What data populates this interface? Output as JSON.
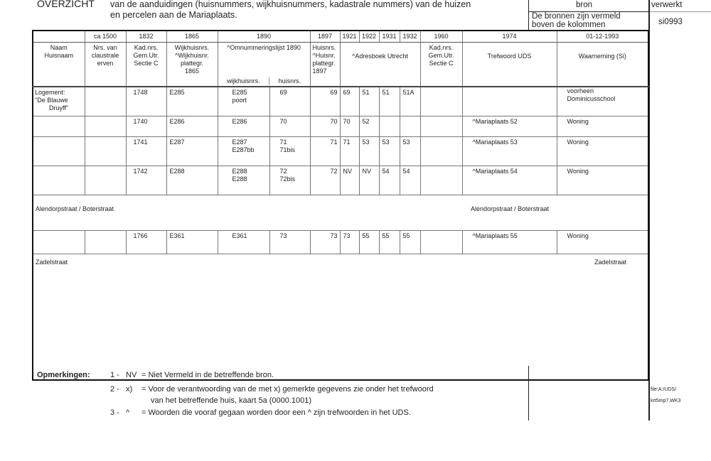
{
  "header": {
    "title": "OVERZICHT",
    "subtitle_line1": "van de aanduidingen (huisnummers, wijkhuisnummers, kadastrale nummers) van de huizen",
    "subtitle_line2": "en percelen aan de Mariaplaats.",
    "bron_label": "bron",
    "bron_text_1": "De bronnen zijn vermeld",
    "bron_text_2": "boven de kolommen",
    "verwerkt_label": "verwerkt",
    "verwerkt_value": "si0993"
  },
  "table": {
    "years": [
      "",
      "ca 1500",
      "1832",
      "1865",
      "1890",
      "1897",
      "1921",
      "1922",
      "1931",
      "1932",
      "1960",
      "1974",
      "01-12-1993"
    ],
    "sources": [
      "Naam\nHuisnaam",
      "Nrs. van\nclaustrale\nerven",
      "Kad.nrs.\nGem.Utr.\nSectie C",
      "Wijkhuisnrs.\n^Wijkhuisnr.\nplattegr.\n1865",
      "^Omnummeringslijst 1890",
      "Huisnrs.\n^Huisnr.\nplattegr.\n1897",
      "^Adresboek Utrecht",
      "Kad.nrs.\nGem.Utr.\nSectie C",
      "Trefwoord  UDS",
      "Waarneming (Si)"
    ],
    "sub_1890": [
      "wijkhuisnrs.",
      "huisnrs."
    ],
    "rows": [
      [
        "Logement:\n\"De Blauwe\n        Druyff\"",
        "",
        "1748",
        "E285",
        "E285\npoort",
        "69",
        "69",
        "69",
        "51",
        "51",
        "51A",
        "",
        "",
        "voorheen\nDominicusschool"
      ],
      [
        "",
        "",
        "1740",
        "E286",
        "E286",
        "70",
        "70",
        "70",
        "52",
        "",
        "",
        "",
        "^Mariaplaats 52",
        "Woning"
      ],
      [
        "",
        "",
        "1741",
        "E287",
        "E287\nE287bb",
        "71\n71bis",
        "71",
        "71",
        "53",
        "53",
        "53",
        "",
        "^Mariaplaats 53",
        "Woning"
      ],
      [
        "",
        "",
        "1742",
        "E288",
        "E288\nE288",
        "72\n72bis",
        "72",
        "NV",
        "NV",
        "54",
        "54",
        "",
        "^Mariaplaats 54",
        "Woning"
      ],
      {
        "street_left": "Alendorpstraat / Boterstraat",
        "street_right": "Alendorpstraat / Boterstraat"
      },
      [
        "",
        "",
        "1766",
        "E361",
        "E361",
        "73",
        "73",
        "73",
        "55",
        "55",
        "55",
        "",
        "^Mariaplaats 55",
        "Woning"
      ],
      {
        "street_left": "Zadelstraat",
        "street_right": "Zadelstraat",
        "tall": true
      }
    ]
  },
  "remarks": {
    "label": "Opmerkingen:",
    "items": [
      {
        "num": "1 -",
        "key": "NV",
        "text": "= Niet Vermeld in de betreffende bron."
      },
      {
        "num": "2 -",
        "key": "x)",
        "text": "= Voor de verantwoording van de met x) gemerkte gegevens zie onder het trefwoord"
      },
      {
        "num": "",
        "key": "",
        "text": "van het betreffende huis, kaart 5a (0000.1001)"
      },
      {
        "num": "3 -",
        "key": "^",
        "text": "= Woorden die vooraf gegaan worden door een ^ zijn trefwoorden in het UDS."
      }
    ],
    "file_1": "file:A:/UDS/",
    "file_2": "krt5mp7.WK3"
  }
}
